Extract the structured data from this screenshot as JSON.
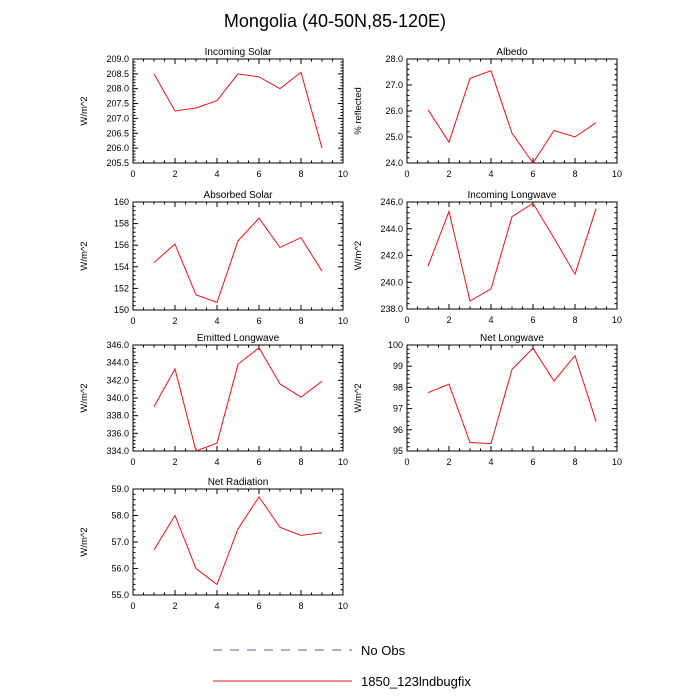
{
  "title": "Mongolia (40-50N,85-120E)",
  "colors": {
    "series": "#e8141b",
    "no_obs": "#5a5acd",
    "axis": "#000000"
  },
  "legend": {
    "items": [
      {
        "label": "No Obs",
        "style": "dashed",
        "color": "#5a5acd"
      },
      {
        "label": "1850_123lndbugfix",
        "style": "solid",
        "color": "#e8141b"
      }
    ]
  },
  "chart_data": [
    {
      "type": "line",
      "title": "Incoming Solar",
      "ylabel": "W/m^2",
      "xlim": [
        0,
        10
      ],
      "ylim": [
        205.5,
        209.0
      ],
      "xticks": [
        0,
        2,
        4,
        6,
        8,
        10
      ],
      "xtick_labels": [
        "0",
        "2",
        "4",
        "6",
        "8",
        "10"
      ],
      "yticks": [
        205.5,
        206.0,
        206.5,
        207.0,
        207.5,
        208.0,
        208.5,
        209.0
      ],
      "ytick_labels": [
        "205.5",
        "206.0",
        "206.5",
        "207.0",
        "207.5",
        "208.0",
        "208.5",
        "209.0"
      ],
      "series": [
        {
          "x": [
            1,
            2,
            3,
            4,
            5,
            6,
            7,
            8,
            9
          ],
          "values": [
            208.5,
            207.25,
            207.35,
            207.6,
            208.5,
            208.4,
            208.0,
            208.55,
            206.0
          ]
        }
      ]
    },
    {
      "type": "line",
      "title": "Albedo",
      "ylabel": "% reflected",
      "xlim": [
        0,
        10
      ],
      "ylim": [
        24.0,
        28.0
      ],
      "xticks": [
        0,
        2,
        4,
        6,
        8,
        10
      ],
      "xtick_labels": [
        "0",
        "2",
        "4",
        "6",
        "8",
        "10"
      ],
      "yticks": [
        24.0,
        25.0,
        26.0,
        27.0,
        28.0
      ],
      "ytick_labels": [
        "24.0",
        "25.0",
        "26.0",
        "27.0",
        "28.0"
      ],
      "series": [
        {
          "x": [
            1,
            2,
            3,
            4,
            5,
            6,
            7,
            8,
            9
          ],
          "values": [
            26.05,
            24.8,
            27.25,
            27.55,
            25.15,
            24.0,
            25.25,
            25.0,
            25.55
          ]
        }
      ]
    },
    {
      "type": "line",
      "title": "Absorbed Solar",
      "ylabel": "W/m^2",
      "xlim": [
        0,
        10
      ],
      "ylim": [
        150,
        160
      ],
      "xticks": [
        0,
        2,
        4,
        6,
        8,
        10
      ],
      "xtick_labels": [
        "0",
        "2",
        "4",
        "6",
        "8",
        "10"
      ],
      "yticks": [
        150,
        152,
        154,
        156,
        158,
        160
      ],
      "ytick_labels": [
        "150",
        "152",
        "154",
        "156",
        "158",
        "160"
      ],
      "series": [
        {
          "x": [
            1,
            2,
            3,
            4,
            5,
            6,
            7,
            8,
            9
          ],
          "values": [
            154.4,
            156.1,
            151.4,
            150.7,
            156.4,
            158.5,
            155.8,
            156.7,
            153.6
          ]
        }
      ]
    },
    {
      "type": "line",
      "title": "Incoming Longwave",
      "ylabel": "W/m^2",
      "xlim": [
        0,
        10
      ],
      "ylim": [
        238.0,
        246.0
      ],
      "xticks": [
        0,
        2,
        4,
        6,
        8,
        10
      ],
      "xtick_labels": [
        "0",
        "2",
        "4",
        "6",
        "8",
        "10"
      ],
      "yticks": [
        238.0,
        240.0,
        242.0,
        244.0,
        246.0
      ],
      "ytick_labels": [
        "238.0",
        "240.0",
        "242.0",
        "244.0",
        "246.0"
      ],
      "series": [
        {
          "x": [
            1,
            2,
            3,
            4,
            5,
            6,
            7,
            8,
            9
          ],
          "values": [
            241.2,
            245.3,
            238.6,
            239.5,
            244.9,
            245.9,
            243.3,
            240.6,
            245.5
          ]
        }
      ]
    },
    {
      "type": "line",
      "title": "Emitted Longwave",
      "ylabel": "W/m^2",
      "xlim": [
        0,
        10
      ],
      "ylim": [
        334.0,
        346.0
      ],
      "xticks": [
        0,
        2,
        4,
        6,
        8,
        10
      ],
      "xtick_labels": [
        "0",
        "2",
        "4",
        "6",
        "8",
        "10"
      ],
      "yticks": [
        334.0,
        336.0,
        338.0,
        340.0,
        342.0,
        344.0,
        346.0
      ],
      "ytick_labels": [
        "334.0",
        "336.0",
        "338.0",
        "340.0",
        "342.0",
        "344.0",
        "346.0"
      ],
      "series": [
        {
          "x": [
            1,
            2,
            3,
            4,
            5,
            6,
            7,
            8,
            9
          ],
          "values": [
            339.0,
            343.3,
            334.0,
            334.9,
            343.8,
            345.7,
            341.6,
            340.1,
            341.9
          ]
        }
      ]
    },
    {
      "type": "line",
      "title": "Net Longwave",
      "ylabel": "W/m^2",
      "xlim": [
        0,
        10
      ],
      "ylim": [
        95,
        100
      ],
      "xticks": [
        0,
        2,
        4,
        6,
        8,
        10
      ],
      "xtick_labels": [
        "0",
        "2",
        "4",
        "6",
        "8",
        "10"
      ],
      "yticks": [
        95,
        96,
        97,
        98,
        99,
        100
      ],
      "ytick_labels": [
        "95",
        "96",
        "97",
        "98",
        "99",
        "100"
      ],
      "series": [
        {
          "x": [
            1,
            2,
            3,
            4,
            5,
            6,
            7,
            8,
            9
          ],
          "values": [
            97.75,
            98.15,
            95.4,
            95.35,
            98.85,
            99.85,
            98.3,
            99.5,
            96.4
          ]
        }
      ]
    },
    {
      "type": "line",
      "title": "Net Radiation",
      "ylabel": "W/m^2",
      "xlim": [
        0,
        10
      ],
      "ylim": [
        55.0,
        59.0
      ],
      "xticks": [
        0,
        2,
        4,
        6,
        8,
        10
      ],
      "xtick_labels": [
        "0",
        "2",
        "4",
        "6",
        "8",
        "10"
      ],
      "yticks": [
        55.0,
        56.0,
        57.0,
        58.0,
        59.0
      ],
      "ytick_labels": [
        "55.0",
        "56.0",
        "57.0",
        "58.0",
        "59.0"
      ],
      "series": [
        {
          "x": [
            1,
            2,
            3,
            4,
            5,
            6,
            7,
            8,
            9
          ],
          "values": [
            56.7,
            58.0,
            56.0,
            55.4,
            57.5,
            58.7,
            57.55,
            57.25,
            57.35
          ]
        }
      ]
    }
  ]
}
